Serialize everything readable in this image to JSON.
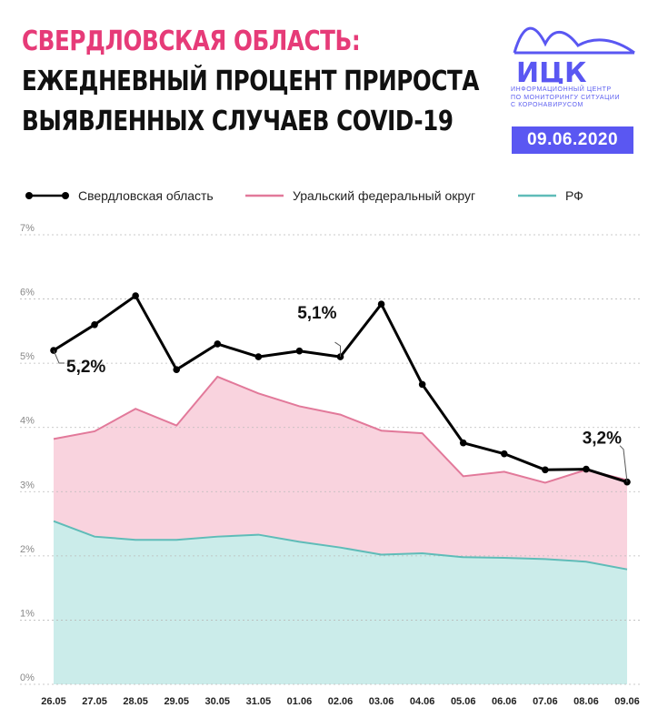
{
  "title": {
    "line1": "СВЕРДЛОВСКАЯ ОБЛАСТЬ:",
    "line2": "ЕЖЕДНЕВНЫЙ ПРОЦЕНТ ПРИРОСТА",
    "line3": "ВЫЯВЛЕННЫХ СЛУЧАЕВ COVID-19"
  },
  "logo": {
    "name": "ИЦК",
    "caption": [
      "ИНФОРМАЦИОННЫЙ ЦЕНТР",
      "ПО МОНИТОРИНГУ СИТУАЦИИ",
      "С КОРОНАВИРУСОМ"
    ],
    "color": "#5a57f2"
  },
  "date": "09.06.2020",
  "chart_data": {
    "type": "area",
    "categories": [
      "26.05",
      "27.05",
      "28.05",
      "29.05",
      "30.05",
      "31.05",
      "01.06",
      "02.06",
      "03.06",
      "04.06",
      "05.06",
      "06.06",
      "07.06",
      "08.06",
      "09.06"
    ],
    "y_ticks": [
      "0%",
      "1%",
      "2%",
      "3%",
      "4%",
      "5%",
      "6%",
      "7%"
    ],
    "ylim": [
      0,
      7
    ],
    "grid": true,
    "legend_position": "top",
    "series": [
      {
        "name": "Свердловская область",
        "style": "line-markers",
        "color": "#000000",
        "values": [
          5.2,
          5.6,
          6.05,
          4.9,
          5.3,
          5.1,
          5.19,
          5.1,
          5.92,
          4.67,
          3.76,
          3.59,
          3.34,
          3.35,
          3.15
        ]
      },
      {
        "name": "Уральский федеральный округ",
        "style": "area",
        "color": "#e2799a",
        "fill": "#f9d3de",
        "values": [
          3.82,
          3.94,
          4.29,
          4.03,
          4.79,
          4.53,
          4.33,
          4.2,
          3.95,
          3.91,
          3.24,
          3.31,
          3.14,
          3.34,
          3.18
        ]
      },
      {
        "name": "РФ",
        "style": "area",
        "color": "#5fbcb8",
        "fill": "#cbecea",
        "values": [
          2.54,
          2.3,
          2.25,
          2.25,
          2.3,
          2.33,
          2.22,
          2.13,
          2.02,
          2.04,
          1.98,
          1.97,
          1.95,
          1.91,
          1.79
        ]
      }
    ],
    "annotations": [
      {
        "text": "5,2%",
        "index": 0,
        "series": 0
      },
      {
        "text": "5,1%",
        "index": 7,
        "series": 0
      },
      {
        "text": "3,2%",
        "index": 14,
        "series": 0
      }
    ]
  }
}
